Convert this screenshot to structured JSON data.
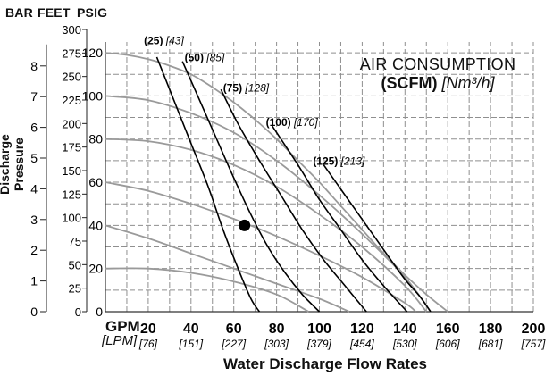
{
  "header": {
    "bar": "BAR",
    "feet": "FEET",
    "psig": "PSIG"
  },
  "ylabel": "Discharge Pressure",
  "xlabel": "Water Discharge Flow Rates",
  "x_units": {
    "primary": "GPM",
    "secondary": "[LPM]"
  },
  "legend": {
    "line1": "AIR CONSUMPTION",
    "bold": "(SCFM)",
    "italic": "[Nm³/h]"
  },
  "colors": {
    "background": "#ffffff",
    "grid": "#8f8f8f",
    "pressure_curve": "#9a9a9a",
    "air_curve": "#000000",
    "text": "#111111"
  },
  "chart_data": {
    "type": "line",
    "xlim": [
      0,
      200
    ],
    "ylim": [
      0,
      125
    ],
    "grid": true,
    "x_ticks": [
      {
        "value": 0,
        "label": "0",
        "lpm": ""
      },
      {
        "value": 20,
        "label": "20",
        "lpm": "[76]"
      },
      {
        "value": 40,
        "label": "40",
        "lpm": "[151]"
      },
      {
        "value": 60,
        "label": "60",
        "lpm": "[227]"
      },
      {
        "value": 80,
        "label": "80",
        "lpm": "[303]"
      },
      {
        "value": 100,
        "label": "100",
        "lpm": "[379]"
      },
      {
        "value": 120,
        "label": "120",
        "lpm": "[454]"
      },
      {
        "value": 140,
        "label": "140",
        "lpm": "[530]"
      },
      {
        "value": 160,
        "label": "160",
        "lpm": "[606]"
      },
      {
        "value": 180,
        "label": "180",
        "lpm": "[681]"
      },
      {
        "value": 200,
        "label": "200",
        "lpm": "[757]"
      }
    ],
    "psig_ticks": [
      {
        "value": 0,
        "label": "0"
      },
      {
        "value": 20,
        "label": "20"
      },
      {
        "value": 40,
        "label": "40"
      },
      {
        "value": 60,
        "label": "60"
      },
      {
        "value": 80,
        "label": "80"
      },
      {
        "value": 100,
        "label": "100"
      },
      {
        "value": 120,
        "label": "120"
      }
    ],
    "feet_ticks": [
      {
        "value": 0,
        "label": "0"
      },
      {
        "value": 25,
        "label": "25"
      },
      {
        "value": 50,
        "label": "50"
      },
      {
        "value": 75,
        "label": "75"
      },
      {
        "value": 100,
        "label": "100"
      },
      {
        "value": 125,
        "label": "125"
      },
      {
        "value": 150,
        "label": "150"
      },
      {
        "value": 175,
        "label": "175"
      },
      {
        "value": 200,
        "label": "200"
      },
      {
        "value": 225,
        "label": "225"
      },
      {
        "value": 250,
        "label": "250"
      },
      {
        "value": 275,
        "label": "275"
      },
      {
        "value": 300,
        "label": "300"
      }
    ],
    "bar_ticks": [
      {
        "value": 0,
        "label": "0"
      },
      {
        "value": 1,
        "label": "1"
      },
      {
        "value": 2,
        "label": "2"
      },
      {
        "value": 3,
        "label": "3"
      },
      {
        "value": 4,
        "label": "4"
      },
      {
        "value": 5,
        "label": "5"
      },
      {
        "value": 6,
        "label": "6"
      },
      {
        "value": 7,
        "label": "7"
      },
      {
        "value": 8,
        "label": "8"
      }
    ],
    "pressure_curves": [
      {
        "name": "120 psig",
        "points": [
          [
            0,
            120
          ],
          [
            10,
            119
          ],
          [
            20,
            117
          ],
          [
            30,
            114
          ],
          [
            40,
            110
          ],
          [
            50,
            104
          ],
          [
            60,
            97
          ],
          [
            70,
            89
          ],
          [
            80,
            80
          ],
          [
            90,
            70
          ],
          [
            100,
            60
          ],
          [
            110,
            49
          ],
          [
            120,
            38
          ],
          [
            130,
            27
          ],
          [
            140,
            17
          ],
          [
            150,
            8
          ],
          [
            160,
            0
          ]
        ]
      },
      {
        "name": "100 psig",
        "points": [
          [
            0,
            100
          ],
          [
            20,
            98
          ],
          [
            40,
            92
          ],
          [
            60,
            83
          ],
          [
            80,
            70
          ],
          [
            100,
            54
          ],
          [
            120,
            36
          ],
          [
            140,
            16
          ],
          [
            152,
            0
          ]
        ]
      },
      {
        "name": "80 psig",
        "points": [
          [
            0,
            80
          ],
          [
            20,
            79
          ],
          [
            40,
            75
          ],
          [
            60,
            68
          ],
          [
            80,
            58
          ],
          [
            100,
            45
          ],
          [
            120,
            30
          ],
          [
            140,
            12
          ],
          [
            150,
            0
          ]
        ]
      },
      {
        "name": "60 psig",
        "points": [
          [
            0,
            60
          ],
          [
            20,
            56
          ],
          [
            40,
            50
          ],
          [
            60,
            43
          ],
          [
            80,
            35
          ],
          [
            100,
            26
          ],
          [
            120,
            16
          ],
          [
            140,
            4
          ],
          [
            145,
            0
          ]
        ]
      },
      {
        "name": "40 psig",
        "points": [
          [
            0,
            40
          ],
          [
            20,
            34
          ],
          [
            40,
            27
          ],
          [
            60,
            20
          ],
          [
            80,
            13
          ],
          [
            100,
            6
          ],
          [
            114,
            0
          ]
        ]
      },
      {
        "name": "20 psig",
        "points": [
          [
            0,
            20
          ],
          [
            20,
            20
          ],
          [
            40,
            18
          ],
          [
            60,
            14
          ],
          [
            80,
            8
          ],
          [
            95,
            0
          ]
        ]
      }
    ],
    "air_curves": [
      {
        "name": "(25)",
        "metric": "[43]",
        "label_at": [
          18,
          124
        ],
        "points": [
          [
            24,
            118
          ],
          [
            32,
            98
          ],
          [
            40,
            78
          ],
          [
            48,
            58
          ],
          [
            55,
            38
          ],
          [
            62,
            20
          ],
          [
            68,
            6
          ],
          [
            72,
            0
          ]
        ]
      },
      {
        "name": "(50)",
        "metric": "[85]",
        "label_at": [
          37,
          116
        ],
        "points": [
          [
            36,
            116
          ],
          [
            44,
            98
          ],
          [
            52,
            80
          ],
          [
            60,
            62
          ],
          [
            68,
            45
          ],
          [
            76,
            30
          ],
          [
            84,
            18
          ],
          [
            92,
            8
          ],
          [
            100,
            0
          ]
        ]
      },
      {
        "name": "(75)",
        "metric": "[128]",
        "label_at": [
          55,
          102
        ],
        "points": [
          [
            54,
            103
          ],
          [
            62,
            87
          ],
          [
            72,
            70
          ],
          [
            82,
            54
          ],
          [
            92,
            38
          ],
          [
            102,
            24
          ],
          [
            112,
            12
          ],
          [
            122,
            0
          ]
        ]
      },
      {
        "name": "(100)",
        "metric": "[170]",
        "label_at": [
          75,
          86
        ],
        "points": [
          [
            78,
            86
          ],
          [
            90,
            68
          ],
          [
            100,
            52
          ],
          [
            110,
            38
          ],
          [
            120,
            24
          ],
          [
            130,
            12
          ],
          [
            141,
            0
          ]
        ]
      },
      {
        "name": "(125)",
        "metric": "[213]",
        "label_at": [
          97,
          68
        ],
        "points": [
          [
            102,
            68
          ],
          [
            112,
            54
          ],
          [
            122,
            40
          ],
          [
            132,
            26
          ],
          [
            140,
            15
          ],
          [
            147,
            7
          ],
          [
            152,
            0
          ]
        ]
      }
    ],
    "operating_point": {
      "x": 65,
      "y": 40
    }
  }
}
